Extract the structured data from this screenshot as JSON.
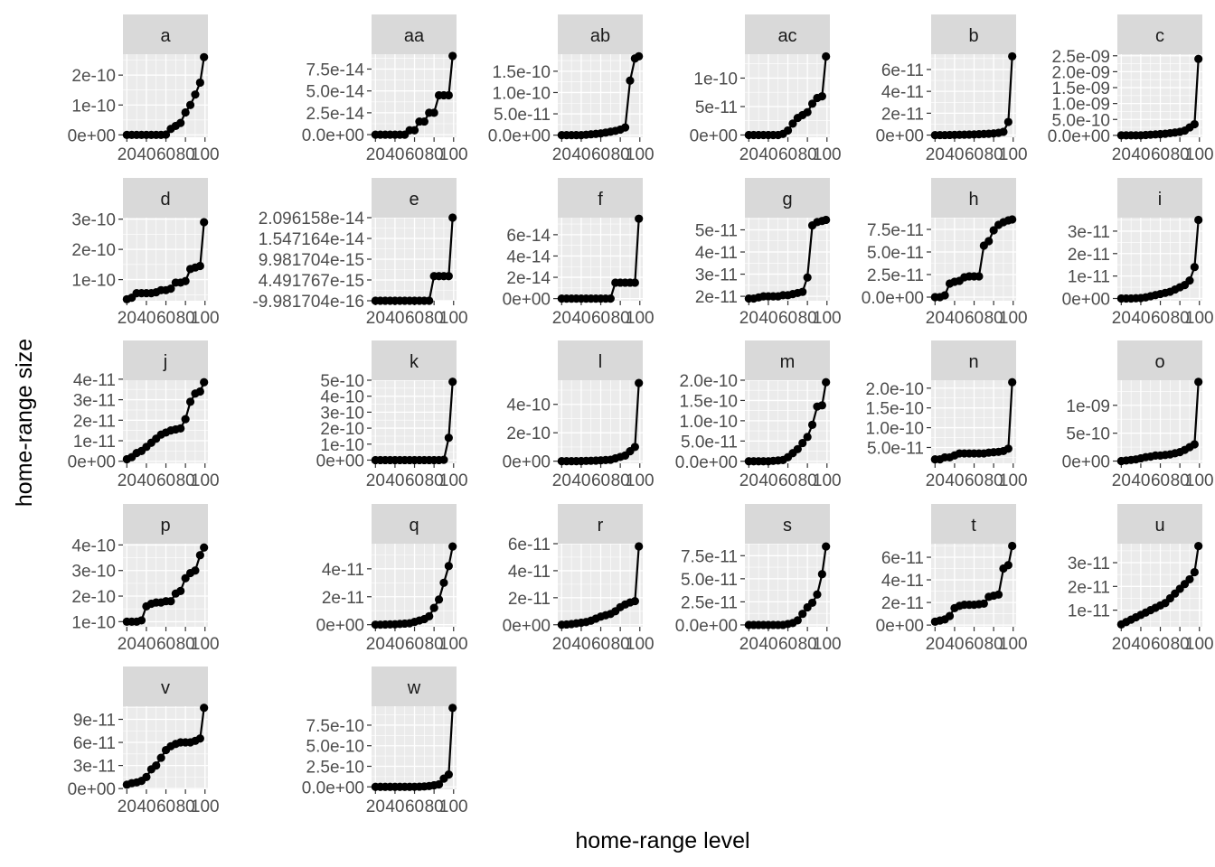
{
  "chart_data": {
    "type": "line",
    "xlabel": "home-range level",
    "ylabel": "home-range size",
    "x": [
      20,
      25,
      30,
      35,
      40,
      45,
      50,
      55,
      60,
      65,
      70,
      75,
      80,
      85,
      90,
      95,
      99
    ],
    "x_ticks": [
      20,
      40,
      60,
      80,
      100
    ],
    "grid": true,
    "colors": {
      "panel_bg": "#EBEBEB",
      "strip_bg": "#D9D9D9",
      "grid": "#FFFFFF",
      "line": "#000000",
      "tick_text": "#4D4D4D"
    },
    "panels": [
      {
        "name": "a",
        "y_ticks": [
          "0e+00",
          "1e-10",
          "2e-10"
        ],
        "ylim": [
          -8e-12,
          2.7e-10
        ],
        "values": [
          0,
          0,
          0,
          0,
          0,
          0,
          0,
          0,
          1e-12,
          2e-11,
          3e-11,
          4e-11,
          7.5e-11,
          1e-10,
          1.35e-10,
          1.75e-10,
          2.6e-10
        ]
      },
      {
        "name": "aa",
        "y_ticks": [
          "0.0e+00",
          "2.5e-14",
          "5.0e-14",
          "7.5e-14"
        ],
        "ylim": [
          -3e-15,
          9.2e-14
        ],
        "values": [
          0,
          0,
          0,
          0,
          0,
          0,
          0,
          5e-15,
          5e-15,
          1.5e-14,
          1.5e-14,
          2.5e-14,
          2.5e-14,
          4.5e-14,
          4.5e-14,
          4.5e-14,
          9e-14
        ]
      },
      {
        "name": "ab",
        "y_ticks": [
          "0.0e+00",
          "5.0e-11",
          "1.0e-10",
          "1.5e-10"
        ],
        "ylim": [
          -5e-12,
          1.9e-10
        ],
        "values": [
          0,
          0,
          0,
          0,
          0,
          1e-12,
          2e-12,
          3e-12,
          4e-12,
          6e-12,
          8e-12,
          1e-11,
          1.3e-11,
          1.8e-11,
          1.28e-10,
          1.8e-10,
          1.85e-10
        ]
      },
      {
        "name": "ac",
        "y_ticks": [
          "0e+00",
          "5e-11",
          "1e-10"
        ],
        "ylim": [
          -4e-12,
          1.42e-10
        ],
        "values": [
          0,
          0,
          0,
          0,
          0,
          0,
          0,
          2e-12,
          8e-12,
          2e-11,
          3e-11,
          3.5e-11,
          4e-11,
          5.5e-11,
          6.5e-11,
          6.8e-11,
          1.38e-10
        ]
      },
      {
        "name": "b",
        "y_ticks": [
          "0e+00",
          "2e-11",
          "4e-11",
          "6e-11"
        ],
        "ylim": [
          -2e-12,
          7.4e-11
        ],
        "values": [
          0,
          0,
          0,
          1e-13,
          2e-13,
          3e-13,
          4e-13,
          5e-13,
          6e-13,
          8e-13,
          1e-12,
          1.2e-12,
          1.5e-12,
          2e-12,
          3e-12,
          1.2e-11,
          7.2e-11
        ]
      },
      {
        "name": "c",
        "y_ticks": [
          "0.0e+00",
          "5.0e-10",
          "1.0e-09",
          "1.5e-09",
          "2.0e-09",
          "2.5e-09"
        ],
        "ylim": [
          -6e-11,
          2.55e-09
        ],
        "values": [
          0,
          0,
          0,
          0,
          0,
          1e-11,
          2e-11,
          3e-11,
          4e-11,
          5e-11,
          7e-11,
          9e-11,
          1.1e-10,
          1.5e-10,
          2.5e-10,
          3.5e-10,
          2.4e-09
        ]
      },
      {
        "name": "d",
        "y_ticks": [
          "1e-10",
          "2e-10",
          "3e-10"
        ],
        "ylim": [
          3e-11,
          3.05e-10
        ],
        "values": [
          3.5e-11,
          4e-11,
          5.5e-11,
          5.5e-11,
          5.5e-11,
          5.5e-11,
          5.8e-11,
          6.5e-11,
          6.5e-11,
          7e-11,
          9e-11,
          9e-11,
          9.5e-11,
          1.35e-10,
          1.4e-10,
          1.45e-10,
          2.9e-10
        ]
      },
      {
        "name": "e",
        "y_ticks": [
          "-9.981704e-16",
          "4.491767e-15",
          "9.981704e-15",
          "1.547164e-14",
          "2.096158e-14"
        ],
        "ylim": [
          -9.981704e-16,
          2.096158e-14
        ],
        "values": [
          -9.981704e-16,
          -9.981704e-16,
          -9.981704e-16,
          -9.981704e-16,
          -9.981704e-16,
          -9.981704e-16,
          -9.981704e-16,
          -9.981704e-16,
          -9.981704e-16,
          -9.981704e-16,
          -9.981704e-16,
          -9.981704e-16,
          5.5e-15,
          5.5e-15,
          5.5e-15,
          5.5e-15,
          2.096158e-14
        ]
      },
      {
        "name": "f",
        "y_ticks": [
          "0e+00",
          "2e-14",
          "4e-14",
          "6e-14"
        ],
        "ylim": [
          -2e-15,
          7.6e-14
        ],
        "values": [
          0,
          0,
          0,
          0,
          0,
          0,
          0,
          0,
          0,
          0,
          0,
          1.5e-14,
          1.5e-14,
          1.5e-14,
          1.5e-14,
          1.5e-14,
          7.5e-14
        ]
      },
      {
        "name": "g",
        "y_ticks": [
          "2e-11",
          "3e-11",
          "4e-11",
          "5e-11"
        ],
        "ylim": [
          1.8e-11,
          5.55e-11
        ],
        "values": [
          1.9e-11,
          1.9e-11,
          1.95e-11,
          2e-11,
          2e-11,
          2e-11,
          2e-11,
          2.05e-11,
          2.05e-11,
          2.1e-11,
          2.15e-11,
          2.2e-11,
          2.85e-11,
          5.2e-11,
          5.35e-11,
          5.4e-11,
          5.45e-11
        ]
      },
      {
        "name": "h",
        "y_ticks": [
          "0.0e+00",
          "2.5e-11",
          "5.0e-11",
          "7.5e-11"
        ],
        "ylim": [
          -4e-12,
          8.8e-11
        ],
        "values": [
          0,
          0,
          2e-12,
          1.5e-11,
          1.7e-11,
          1.8e-11,
          2.2e-11,
          2.3e-11,
          2.3e-11,
          2.3e-11,
          5.7e-11,
          6.2e-11,
          7.4e-11,
          8e-11,
          8.3e-11,
          8.5e-11,
          8.6e-11
        ]
      },
      {
        "name": "i",
        "y_ticks": [
          "0e+00",
          "1e-11",
          "2e-11",
          "3e-11"
        ],
        "ylim": [
          -1e-12,
          3.6e-11
        ],
        "values": [
          0,
          0,
          0,
          1e-13,
          2e-13,
          5e-13,
          1e-12,
          1.5e-12,
          2e-12,
          2.5e-12,
          3e-12,
          4e-12,
          5e-12,
          6e-12,
          8e-12,
          1.4e-11,
          3.5e-11
        ]
      },
      {
        "name": "j",
        "y_ticks": [
          "0e+00",
          "1e-11",
          "2e-11",
          "3e-11",
          "4e-11"
        ],
        "ylim": [
          -1e-12,
          3.95e-11
        ],
        "values": [
          1e-12,
          2e-12,
          4e-12,
          5e-12,
          7e-12,
          9e-12,
          1.1e-11,
          1.3e-11,
          1.4e-11,
          1.5e-11,
          1.55e-11,
          1.6e-11,
          2.05e-11,
          2.9e-11,
          3.3e-11,
          3.4e-11,
          3.85e-11
        ]
      },
      {
        "name": "k",
        "y_ticks": [
          "0e+00",
          "1e-10",
          "2e-10",
          "3e-10",
          "4e-10",
          "5e-10"
        ],
        "ylim": [
          -2e-11,
          5e-10
        ],
        "values": [
          0,
          0,
          0,
          0,
          0,
          0,
          0,
          0,
          0,
          0,
          0,
          0,
          0,
          0,
          2e-12,
          1.4e-10,
          4.9e-10
        ]
      },
      {
        "name": "l",
        "y_ticks": [
          "0e+00",
          "2e-10",
          "4e-10"
        ],
        "ylim": [
          -1.5e-11,
          5.7e-10
        ],
        "values": [
          0,
          0,
          0,
          0,
          1e-12,
          2e-12,
          3e-12,
          4e-12,
          6e-12,
          8e-12,
          1e-11,
          2e-11,
          3e-11,
          4e-11,
          7e-11,
          1e-10,
          5.5e-10
        ]
      },
      {
        "name": "m",
        "y_ticks": [
          "0.0e+00",
          "5.0e-11",
          "1.0e-10",
          "1.5e-10",
          "2.0e-10"
        ],
        "ylim": [
          -5e-12,
          2e-10
        ],
        "values": [
          0,
          0,
          0,
          0,
          0,
          1e-12,
          2e-12,
          3e-12,
          1e-11,
          2e-11,
          3e-11,
          4.5e-11,
          6e-11,
          9e-11,
          1.35e-10,
          1.38e-10,
          1.95e-10
        ]
      },
      {
        "name": "n",
        "y_ticks": [
          "5.0e-11",
          "1.0e-10",
          "1.5e-10",
          "2.0e-10"
        ],
        "ylim": [
          1e-11,
          2.2e-10
        ],
        "values": [
          2e-11,
          2e-11,
          2.5e-11,
          2.5e-11,
          3e-11,
          3.5e-11,
          3.5e-11,
          3.5e-11,
          3.5e-11,
          3.5e-11,
          3.5e-11,
          3.7e-11,
          3.8e-11,
          3.9e-11,
          4.1e-11,
          4.7e-11,
          2.15e-10
        ]
      },
      {
        "name": "o",
        "y_ticks": [
          "0e+00",
          "5e-10",
          "1e-09"
        ],
        "ylim": [
          -4e-11,
          1.45e-09
        ],
        "values": [
          0,
          1e-11,
          2e-11,
          3e-11,
          5e-11,
          7e-11,
          8e-11,
          1e-10,
          1e-10,
          1.1e-10,
          1.2e-10,
          1.4e-10,
          1.6e-10,
          2e-10,
          2.5e-10,
          3e-10,
          1.42e-09
        ]
      },
      {
        "name": "p",
        "y_ticks": [
          "1e-10",
          "2e-10",
          "3e-10",
          "4e-10"
        ],
        "ylim": [
          8e-11,
          4.05e-10
        ],
        "values": [
          1e-10,
          1e-10,
          1e-10,
          1.05e-10,
          1.6e-10,
          1.7e-10,
          1.75e-10,
          1.75e-10,
          1.8e-10,
          1.8e-10,
          2.1e-10,
          2.2e-10,
          2.7e-10,
          2.9e-10,
          3e-10,
          3.6e-10,
          3.9e-10
        ]
      },
      {
        "name": "q",
        "y_ticks": [
          "0e+00",
          "2e-11",
          "4e-11"
        ],
        "ylim": [
          -1.5e-12,
          5.8e-11
        ],
        "values": [
          0,
          0,
          1e-13,
          2e-13,
          3e-13,
          5e-13,
          8e-13,
          1e-12,
          2e-12,
          3e-12,
          4e-12,
          6e-12,
          1.2e-11,
          1.8e-11,
          3e-11,
          4.2e-11,
          5.6e-11
        ]
      },
      {
        "name": "r",
        "y_ticks": [
          "0e+00",
          "2e-11",
          "4e-11",
          "6e-11"
        ],
        "ylim": [
          -1.5e-12,
          6e-11
        ],
        "values": [
          0,
          2e-13,
          5e-13,
          1e-12,
          1.5e-12,
          2e-12,
          3e-12,
          4.5e-12,
          6e-12,
          7e-12,
          8e-12,
          1e-11,
          1.3e-11,
          1.5e-11,
          1.65e-11,
          1.75e-11,
          5.8e-11
        ]
      },
      {
        "name": "s",
        "y_ticks": [
          "0.0e+00",
          "2.5e-11",
          "5.0e-11",
          "7.5e-11"
        ],
        "ylim": [
          -2e-12,
          8.8e-11
        ],
        "values": [
          0,
          0,
          0,
          0,
          0,
          0,
          0,
          0,
          1e-12,
          2e-12,
          5e-12,
          1.2e-11,
          1.9e-11,
          2.4e-11,
          3.3e-11,
          5.5e-11,
          8.5e-11
        ]
      },
      {
        "name": "t",
        "y_ticks": [
          "0e+00",
          "2e-11",
          "4e-11",
          "6e-11"
        ],
        "ylim": [
          -1.5e-12,
          7.2e-11
        ],
        "values": [
          3e-12,
          4e-12,
          5e-12,
          8e-12,
          1.5e-11,
          1.7e-11,
          1.8e-11,
          1.8e-11,
          1.8e-11,
          1.85e-11,
          1.9e-11,
          2.5e-11,
          2.6e-11,
          2.7e-11,
          5e-11,
          5.3e-11,
          7e-11
        ]
      },
      {
        "name": "u",
        "y_ticks": [
          "1e-11",
          "2e-11",
          "3e-11"
        ],
        "ylim": [
          3e-12,
          3.8e-11
        ],
        "values": [
          4e-12,
          5e-12,
          6e-12,
          7e-12,
          8e-12,
          9e-12,
          1e-11,
          1.1e-11,
          1.2e-11,
          1.3e-11,
          1.5e-11,
          1.7e-11,
          1.9e-11,
          2.1e-11,
          2.3e-11,
          2.6e-11,
          3.7e-11
        ]
      },
      {
        "name": "v",
        "y_ticks": [
          "0e+00",
          "3e-11",
          "6e-11",
          "9e-11"
        ],
        "ylim": [
          -1e-12,
          1.07e-10
        ],
        "values": [
          5e-12,
          7e-12,
          8e-12,
          1e-11,
          1.5e-11,
          2.5e-11,
          3e-11,
          4e-11,
          5e-11,
          5.5e-11,
          5.8e-11,
          6e-11,
          6e-11,
          6e-11,
          6.2e-11,
          6.5e-11,
          1.05e-10
        ]
      },
      {
        "name": "w",
        "y_ticks": [
          "0.0e+00",
          "2.5e-10",
          "5.0e-10",
          "7.5e-10"
        ],
        "ylim": [
          -3e-11,
          9.8e-10
        ],
        "values": [
          0,
          0,
          0,
          0,
          0,
          0,
          0,
          0,
          1e-12,
          2e-12,
          5e-12,
          1e-11,
          2e-11,
          3e-11,
          1e-10,
          1.5e-10,
          9.6e-10
        ]
      }
    ]
  }
}
